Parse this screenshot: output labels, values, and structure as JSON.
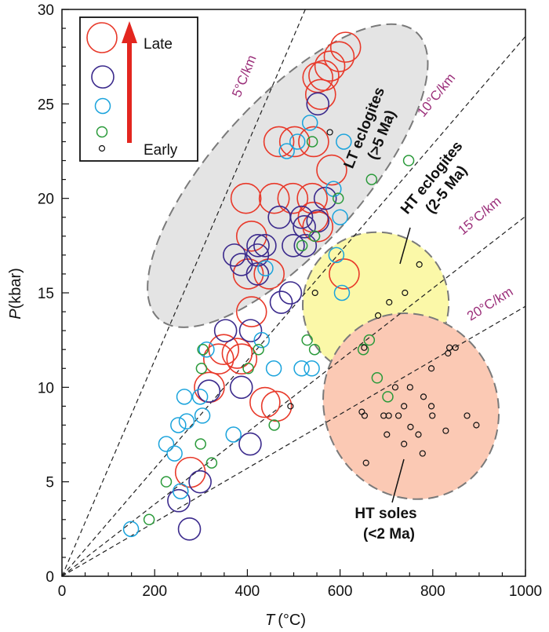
{
  "chart_data": {
    "type": "scatter",
    "title": "",
    "xlabel": "T (°C)",
    "xlabel_var": "T",
    "xlabel_unit": "(°C)",
    "ylabel": "P(kbar)",
    "ylabel_var": "P",
    "ylabel_unit": "(kbar)",
    "xlim": [
      0,
      1000
    ],
    "ylim": [
      0,
      30
    ],
    "xticks": [
      0,
      200,
      400,
      600,
      800,
      1000
    ],
    "yticks": [
      0,
      5,
      10,
      15,
      20,
      25,
      30
    ],
    "grid": false,
    "colors": {
      "late": "#e8392a",
      "purple": "#3b2a8c",
      "cyan": "#1aa3dc",
      "green": "#2a9a3a",
      "early": "#111111",
      "arrow": "#e3261f",
      "lt_fill": "#e4e4e4",
      "ht_fill": "#fbf8a8",
      "sole_fill": "#fbc9b4",
      "rate_text": "#9b2f7a"
    },
    "legend": {
      "position": "top-left",
      "entries": [
        {
          "group": "late",
          "label": "Late"
        },
        {
          "group": "purple",
          "label": ""
        },
        {
          "group": "cyan",
          "label": ""
        },
        {
          "group": "green",
          "label": ""
        },
        {
          "group": "early",
          "label": "Early"
        }
      ]
    },
    "geotherms": [
      {
        "gradient_c_per_km": 5,
        "label": "5°C/km"
      },
      {
        "gradient_c_per_km": 10,
        "label": "10°C/km"
      },
      {
        "gradient_c_per_km": 15,
        "label": "15°C/km"
      },
      {
        "gradient_c_per_km": 20,
        "label": "20°C/km"
      }
    ],
    "regions": [
      {
        "name": "lt",
        "line1": "LT eclogites",
        "line2": "(>5 Ma)",
        "center": [
          487,
          21.2
        ],
        "radii": [
          160,
          10.2
        ],
        "rotation_deg": 42
      },
      {
        "name": "ht",
        "line1": "HT eclogites",
        "line2": "(2-5 Ma)",
        "center": [
          677,
          14.4
        ],
        "radii": [
          158,
          3.8
        ],
        "rotation_deg": -23
      },
      {
        "name": "sole",
        "line1": "HT soles",
        "line2": "(<2 Ma)",
        "center": [
          753,
          9.0
        ],
        "radii": [
          186,
          5.0
        ],
        "rotation_deg": -26
      }
    ],
    "series": [
      {
        "name": "late",
        "points": [
          [
            612,
            28
          ],
          [
            598,
            27.5
          ],
          [
            578,
            27
          ],
          [
            565,
            26.5
          ],
          [
            552,
            26.4
          ],
          [
            558,
            25.5
          ],
          [
            468,
            23
          ],
          [
            502,
            23
          ],
          [
            543,
            23
          ],
          [
            582,
            21.5
          ],
          [
            397,
            20
          ],
          [
            458,
            20
          ],
          [
            498,
            20
          ],
          [
            540,
            20
          ],
          [
            542,
            19
          ],
          [
            552,
            18.5
          ],
          [
            409,
            18
          ],
          [
            402,
            16
          ],
          [
            447,
            16
          ],
          [
            609,
            16
          ],
          [
            409,
            14
          ],
          [
            349,
            12
          ],
          [
            378,
            11.8
          ],
          [
            338,
            11.5
          ],
          [
            388,
            11.5
          ],
          [
            318,
            10
          ],
          [
            438,
            9.2
          ],
          [
            463,
            9.0
          ],
          [
            277,
            5.5
          ]
        ]
      },
      {
        "name": "purple",
        "points": [
          [
            552,
            25
          ],
          [
            517,
            19
          ],
          [
            469,
            19
          ],
          [
            523,
            18.5
          ],
          [
            568,
            20
          ],
          [
            552,
            18.8
          ],
          [
            423,
            17.5
          ],
          [
            438,
            17.5
          ],
          [
            372,
            17
          ],
          [
            422,
            17
          ],
          [
            387,
            16.5
          ],
          [
            422,
            16
          ],
          [
            499,
            17.5
          ],
          [
            525,
            17.5
          ],
          [
            493,
            15
          ],
          [
            473,
            14.5
          ],
          [
            407,
            13
          ],
          [
            387,
            10
          ],
          [
            353,
            13
          ],
          [
            317,
            9.8
          ],
          [
            406,
            7
          ],
          [
            298,
            5
          ],
          [
            252,
            4
          ],
          [
            275,
            2.5
          ]
        ]
      },
      {
        "name": "cyan",
        "points": [
          [
            535,
            24
          ],
          [
            508,
            23
          ],
          [
            485,
            22.5
          ],
          [
            608,
            23
          ],
          [
            586,
            20.5
          ],
          [
            600,
            19
          ],
          [
            592,
            17
          ],
          [
            439,
            16.3
          ],
          [
            604,
            15
          ],
          [
            431,
            12.5
          ],
          [
            457,
            11
          ],
          [
            517,
            11
          ],
          [
            539,
            11
          ],
          [
            312,
            12
          ],
          [
            298,
            9.5
          ],
          [
            264,
            9.5
          ],
          [
            303,
            8.5
          ],
          [
            269,
            8.2
          ],
          [
            251,
            8
          ],
          [
            243,
            6.5
          ],
          [
            225,
            7
          ],
          [
            370,
            7.5
          ],
          [
            256,
            4.5
          ],
          [
            149,
            2.5
          ]
        ]
      },
      {
        "name": "green",
        "points": [
          [
            748,
            22
          ],
          [
            668,
            21
          ],
          [
            596,
            20
          ],
          [
            540,
            23
          ],
          [
            545,
            18
          ],
          [
            518,
            17.5
          ],
          [
            529,
            12.5
          ],
          [
            545,
            12
          ],
          [
            663,
            12.5
          ],
          [
            650,
            12
          ],
          [
            304,
            12
          ],
          [
            424,
            12
          ],
          [
            402,
            11
          ],
          [
            301,
            11
          ],
          [
            680,
            10.5
          ],
          [
            703,
            9.5
          ],
          [
            299,
            7
          ],
          [
            323,
            6
          ],
          [
            225,
            5
          ],
          [
            188,
            3
          ],
          [
            458,
            8
          ]
        ]
      },
      {
        "name": "early",
        "points": [
          [
            578,
            23.5
          ],
          [
            546,
            15
          ],
          [
            771,
            16.5
          ],
          [
            740,
            15
          ],
          [
            706,
            14.5
          ],
          [
            682,
            13.8
          ],
          [
            652,
            12.1
          ],
          [
            836,
            12.1
          ],
          [
            849,
            12.1
          ],
          [
            833,
            11.8
          ],
          [
            797,
            11
          ],
          [
            751,
            10
          ],
          [
            719,
            10
          ],
          [
            780,
            9.5
          ],
          [
            694,
            8.5
          ],
          [
            738,
            9
          ],
          [
            797,
            9
          ],
          [
            647,
            8.7
          ],
          [
            653,
            8.5
          ],
          [
            705,
            8.5
          ],
          [
            726,
            8.5
          ],
          [
            799,
            8.5
          ],
          [
            874,
            8.5
          ],
          [
            752,
            7.9
          ],
          [
            828,
            7.7
          ],
          [
            701,
            7.5
          ],
          [
            769,
            7.5
          ],
          [
            894,
            8
          ],
          [
            738,
            7
          ],
          [
            778,
            6.5
          ],
          [
            656,
            6
          ],
          [
            493,
            9
          ]
        ]
      }
    ]
  }
}
